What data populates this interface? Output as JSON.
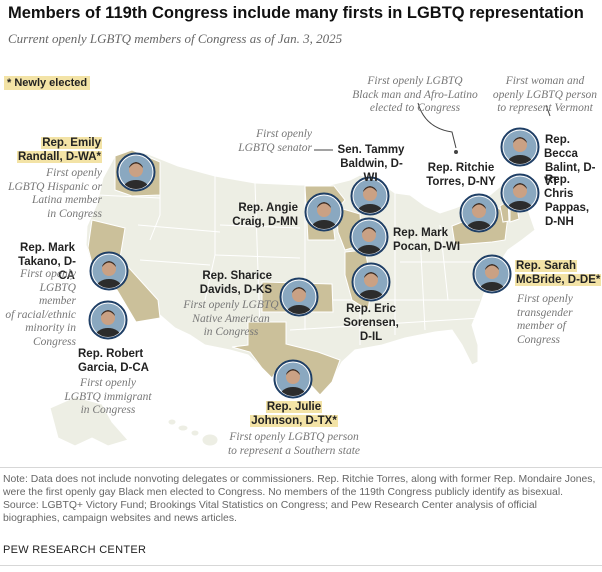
{
  "title": "Members of 119th Congress include many firsts in LGBTQ representation",
  "subtitle": "Current openly LGBTQ members of Congress as of Jan. 3, 2025",
  "legend": "* Newly elected",
  "colors": {
    "highlight_state": "#cbc09a",
    "land": "#edeee4",
    "state_border": "#ffffff",
    "new_member_highlight": "#f3e3a6",
    "pin": "#444444"
  },
  "members": [
    {
      "label": "Rep. Emily Randall, D-WA*",
      "lines": [
        "Rep. Emily",
        "Randall, D-WA*"
      ],
      "new": true,
      "note": [
        "First openly",
        "LGBTQ Hispanic or",
        "Latina member",
        "in Congress"
      ]
    },
    {
      "label": "Rep. Mark Takano, D-CA",
      "lines": [
        "Rep. Mark",
        "Takano, D-CA"
      ],
      "new": false,
      "note": [
        "First openly",
        "LGBTQ member",
        "of racial/ethnic",
        "minority in",
        "Congress"
      ]
    },
    {
      "label": "Rep. Robert Garcia, D-CA",
      "lines": [
        "Rep. Robert",
        "Garcia, D-CA"
      ],
      "new": false,
      "note": [
        "First openly",
        "LGBTQ immigrant",
        "in Congress"
      ]
    },
    {
      "label": "Sen. Tammy Baldwin, D-WI",
      "lines": [
        "Sen. Tammy",
        "Baldwin, D-WI"
      ],
      "new": false,
      "note": [
        "First openly",
        "LGBTQ senator"
      ]
    },
    {
      "label": "Rep. Angie Craig, D-MN",
      "lines": [
        "Rep. Angie",
        "Craig, D-MN"
      ],
      "new": false,
      "note": []
    },
    {
      "label": "Rep. Mark Pocan, D-WI",
      "lines": [
        "Rep. Mark",
        "Pocan, D-WI"
      ],
      "new": false,
      "note": []
    },
    {
      "label": "Rep. Sharice Davids, D-KS",
      "lines": [
        "Rep. Sharice",
        "Davids, D-KS"
      ],
      "new": false,
      "note": [
        "First openly LGBTQ",
        "Native American",
        "in Congress"
      ]
    },
    {
      "label": "Rep. Eric Sorensen, D-IL",
      "lines": [
        "Rep. Eric",
        "Sorensen,",
        "D-IL"
      ],
      "new": false,
      "note": []
    },
    {
      "label": "Rep. Julie Johnson, D-TX*",
      "lines": [
        "Rep. Julie",
        "Johnson, D-TX*"
      ],
      "new": true,
      "note": [
        "First openly LGBTQ person",
        "to represent a Southern state"
      ]
    },
    {
      "label": "Rep. Ritchie Torres, D-NY",
      "lines": [
        "Rep. Ritchie",
        "Torres, D-NY"
      ],
      "new": false,
      "note": [
        "First openly LGBTQ",
        "Black man and Afro-Latino",
        "elected to Congress"
      ]
    },
    {
      "label": "Rep. Becca Balint, D-VT",
      "lines": [
        "Rep. Becca",
        "Balint, D-VT"
      ],
      "new": false,
      "note": [
        "First woman and",
        "openly LGBTQ person",
        "to represent Vermont"
      ]
    },
    {
      "label": "Rep. Chris Pappas, D-NH",
      "lines": [
        "Rep. Chris",
        "Pappas,",
        "D-NH"
      ],
      "new": false,
      "note": []
    },
    {
      "label": "Rep. Sarah McBride, D-DE*",
      "lines": [
        "Rep. Sarah",
        "McBride, D-DE*"
      ],
      "new": true,
      "note": [
        "First openly",
        "transgender",
        "member of",
        "Congress"
      ]
    }
  ],
  "note_lines": [
    "Note: Data does not include nonvoting delegates or commissioners. Rep. Ritchie Torres, along with former Rep. Mondaire Jones,",
    "were the first openly gay Black men elected to Congress. No members of the 119th Congress publicly identify as bisexual.",
    "Source: LGBTQ+ Victory Fund; Brookings Vital Statistics on Congress; and Pew Research Center analysis of official",
    "biographies, campaign websites and news articles."
  ],
  "footer": "PEW RESEARCH CENTER"
}
